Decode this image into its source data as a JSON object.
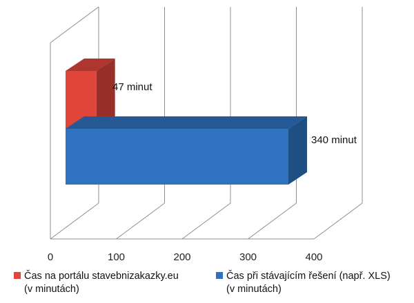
{
  "chart_data": {
    "type": "bar",
    "orientation": "horizontal",
    "style": "3d",
    "xlim": [
      0,
      400
    ],
    "ticks": [
      0,
      100,
      200,
      300,
      400
    ],
    "tick_labels": [
      "0",
      "100",
      "200",
      "300",
      "400"
    ],
    "grid": true,
    "legend_position": "bottom",
    "series": [
      {
        "name": "Čas na portálu stavebnizakazky.eu (v minutách)",
        "name_line1": "Čas na portálu stavebnizakazky.eu",
        "name_line2": "(v minutách)",
        "value": 47,
        "label": "47 minut",
        "color": "#e0453b"
      },
      {
        "name": "Čas při stávajícím řešení (např. XLS) (v minutách)",
        "name_line1": "Čas při stávajícím řešení (např. XLS)",
        "name_line2": "(v minutách)",
        "value": 340,
        "label": "340 minut",
        "color": "#2e72c0"
      }
    ]
  }
}
